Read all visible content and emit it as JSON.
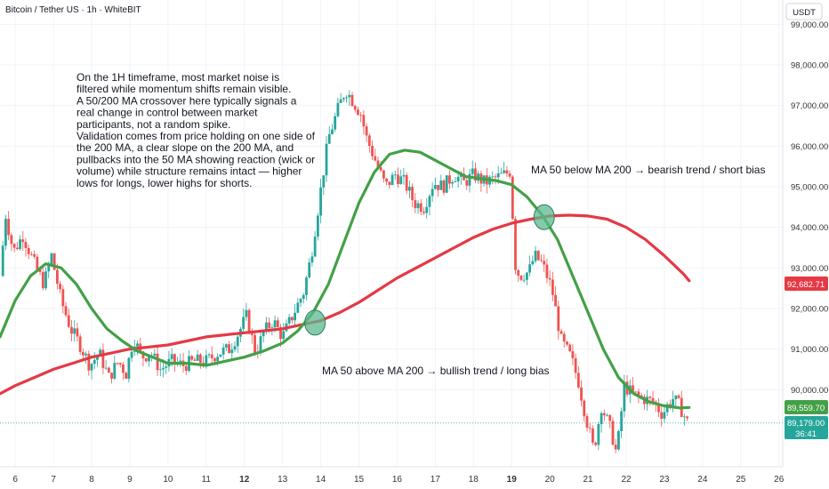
{
  "header": {
    "title": "Bitcoin / Tether US · 1h · WhiteBIT",
    "currency": "USDT"
  },
  "annotation": {
    "lines": [
      "On the 1H timeframe, most market noise is",
      "filtered while momentum shifts remain visible.",
      "A 50/200 MA crossover here typically signals a",
      "real change in control between market",
      "participants, not a random spike.",
      "Validation comes from price holding on one side of",
      "the 200 MA, a clear slope on the 200 MA, and",
      "pullbacks into the 50 MA showing reaction (wick or",
      "volume) while structure remains intact — higher",
      "lows for longs, lower highs for shorts."
    ],
    "bullish": "MA 50 above MA 200 → bullish trend / long bias",
    "bearish": "MA 50 below MA 200 → bearish trend / short bias"
  },
  "price_tags": {
    "ma200": "92,682.71",
    "ma50": "89,559.70",
    "last": "89,179.00",
    "countdown": "36:41"
  },
  "colors": {
    "up": "#26a69a",
    "down": "#ef5350",
    "ma50": "#43a047",
    "ma200": "#e53945",
    "marker": "#5cb88d",
    "axis_text": "#333333"
  },
  "chart_data": {
    "type": "candlestick",
    "symbol": "Bitcoin / Tether US",
    "timeframe": "1h",
    "exchange": "WhiteBIT",
    "quote": "USDT",
    "x_ticks": [
      "6",
      "7",
      "8",
      "9",
      "10",
      "11",
      "12",
      "13",
      "14",
      "15",
      "16",
      "17",
      "18",
      "19",
      "20",
      "21",
      "22",
      "23",
      "24",
      "25",
      "26"
    ],
    "x_ticks_bold": [
      "12",
      "19"
    ],
    "y_ticks": [
      90000,
      91000,
      92000,
      93000,
      94000,
      95000,
      96000,
      97000,
      98000,
      99000
    ],
    "y_tick_labels": [
      "90,000.00",
      "91,000.00",
      "92,000.00",
      "93,000.00",
      "94,000.00",
      "95,000.00",
      "96,000.00",
      "97,000.00",
      "98,000.00",
      "99,000.00"
    ],
    "ylim": [
      88100,
      99600
    ],
    "xlim_days": [
      5.6,
      26.1
    ],
    "price_path": [
      [
        5.6,
        92800
      ],
      [
        5.75,
        94300
      ],
      [
        5.95,
        93400
      ],
      [
        6.2,
        93800
      ],
      [
        6.5,
        93100
      ],
      [
        6.75,
        92600
      ],
      [
        6.95,
        93300
      ],
      [
        7.2,
        92200
      ],
      [
        7.45,
        91500
      ],
      [
        7.7,
        91100
      ],
      [
        7.95,
        90600
      ],
      [
        8.2,
        90900
      ],
      [
        8.45,
        90300
      ],
      [
        8.7,
        90700
      ],
      [
        8.9,
        90400
      ],
      [
        9.1,
        91300
      ],
      [
        9.3,
        90800
      ],
      [
        9.55,
        90900
      ],
      [
        9.8,
        90500
      ],
      [
        10.1,
        90700
      ],
      [
        10.4,
        90600
      ],
      [
        10.7,
        90700
      ],
      [
        11.0,
        90700
      ],
      [
        11.3,
        90900
      ],
      [
        11.6,
        91000
      ],
      [
        11.85,
        91400
      ],
      [
        12.05,
        91800
      ],
      [
        12.3,
        90900
      ],
      [
        12.5,
        91400
      ],
      [
        12.75,
        91700
      ],
      [
        13.0,
        91300
      ],
      [
        13.3,
        91900
      ],
      [
        13.55,
        92400
      ],
      [
        13.75,
        93300
      ],
      [
        13.95,
        94600
      ],
      [
        14.2,
        96200
      ],
      [
        14.45,
        96900
      ],
      [
        14.65,
        97400
      ],
      [
        14.85,
        97100
      ],
      [
        15.05,
        96800
      ],
      [
        15.2,
        96200
      ],
      [
        15.45,
        95600
      ],
      [
        15.7,
        95000
      ],
      [
        15.95,
        95300
      ],
      [
        16.2,
        95100
      ],
      [
        16.45,
        94600
      ],
      [
        16.7,
        94500
      ],
      [
        16.95,
        95100
      ],
      [
        17.2,
        95000
      ],
      [
        17.5,
        95300
      ],
      [
        17.75,
        95100
      ],
      [
        18.0,
        95300
      ],
      [
        18.3,
        95100
      ],
      [
        18.55,
        95200
      ],
      [
        18.8,
        95300
      ],
      [
        19.0,
        95400
      ],
      [
        19.05,
        93200
      ],
      [
        19.2,
        92800
      ],
      [
        19.45,
        92900
      ],
      [
        19.6,
        93300
      ],
      [
        19.8,
        93100
      ],
      [
        20.05,
        92500
      ],
      [
        20.3,
        91200
      ],
      [
        20.55,
        90800
      ],
      [
        20.75,
        90200
      ],
      [
        20.95,
        89300
      ],
      [
        21.15,
        88500
      ],
      [
        21.35,
        89600
      ],
      [
        21.6,
        89000
      ],
      [
        21.75,
        88400
      ],
      [
        21.95,
        90100
      ],
      [
        22.15,
        89900
      ],
      [
        22.4,
        89800
      ],
      [
        22.7,
        89700
      ],
      [
        22.95,
        89400
      ],
      [
        23.2,
        89800
      ],
      [
        23.4,
        89600
      ],
      [
        23.6,
        89200
      ]
    ],
    "ma50": [
      [
        5.6,
        91300
      ],
      [
        6.0,
        92200
      ],
      [
        6.4,
        92800
      ],
      [
        6.8,
        93100
      ],
      [
        7.2,
        93000
      ],
      [
        7.6,
        92600
      ],
      [
        8.0,
        92000
      ],
      [
        8.4,
        91500
      ],
      [
        8.8,
        91200
      ],
      [
        9.2,
        90950
      ],
      [
        9.6,
        90800
      ],
      [
        10.0,
        90650
      ],
      [
        10.5,
        90650
      ],
      [
        11.0,
        90600
      ],
      [
        11.5,
        90700
      ],
      [
        12.0,
        90800
      ],
      [
        12.5,
        90950
      ],
      [
        13.0,
        91150
      ],
      [
        13.4,
        91450
      ],
      [
        13.8,
        91900
      ],
      [
        14.2,
        92600
      ],
      [
        14.6,
        93600
      ],
      [
        15.0,
        94600
      ],
      [
        15.4,
        95350
      ],
      [
        15.8,
        95800
      ],
      [
        16.2,
        95900
      ],
      [
        16.6,
        95850
      ],
      [
        17.0,
        95650
      ],
      [
        17.4,
        95450
      ],
      [
        17.8,
        95250
      ],
      [
        18.2,
        95200
      ],
      [
        18.6,
        95150
      ],
      [
        19.0,
        95050
      ],
      [
        19.4,
        94750
      ],
      [
        19.8,
        94300
      ],
      [
        20.2,
        93700
      ],
      [
        20.6,
        92800
      ],
      [
        21.0,
        91900
      ],
      [
        21.4,
        91000
      ],
      [
        21.8,
        90300
      ],
      [
        22.2,
        89900
      ],
      [
        22.6,
        89700
      ],
      [
        23.0,
        89600
      ],
      [
        23.4,
        89550
      ],
      [
        23.65,
        89560
      ]
    ],
    "ma200": [
      [
        5.6,
        89900
      ],
      [
        6.0,
        90100
      ],
      [
        6.5,
        90300
      ],
      [
        7.0,
        90500
      ],
      [
        7.5,
        90650
      ],
      [
        8.0,
        90800
      ],
      [
        8.5,
        90900
      ],
      [
        9.0,
        91000
      ],
      [
        9.5,
        91050
      ],
      [
        10.0,
        91100
      ],
      [
        10.5,
        91200
      ],
      [
        11.0,
        91300
      ],
      [
        11.5,
        91350
      ],
      [
        12.0,
        91400
      ],
      [
        12.5,
        91450
      ],
      [
        13.0,
        91500
      ],
      [
        13.5,
        91600
      ],
      [
        14.0,
        91700
      ],
      [
        14.5,
        91900
      ],
      [
        15.0,
        92150
      ],
      [
        15.5,
        92450
      ],
      [
        16.0,
        92750
      ],
      [
        16.5,
        93000
      ],
      [
        17.0,
        93250
      ],
      [
        17.5,
        93500
      ],
      [
        18.0,
        93750
      ],
      [
        18.5,
        93950
      ],
      [
        19.0,
        94100
      ],
      [
        19.5,
        94200
      ],
      [
        20.0,
        94280
      ],
      [
        20.5,
        94300
      ],
      [
        21.0,
        94280
      ],
      [
        21.5,
        94200
      ],
      [
        22.0,
        94000
      ],
      [
        22.5,
        93700
      ],
      [
        23.0,
        93300
      ],
      [
        23.5,
        92850
      ],
      [
        23.65,
        92682
      ]
    ],
    "crossovers": [
      {
        "x": 13.85,
        "y": 91650,
        "type": "bullish"
      },
      {
        "x": 19.85,
        "y": 94250,
        "type": "bearish"
      }
    ],
    "last_price": 89179
  }
}
